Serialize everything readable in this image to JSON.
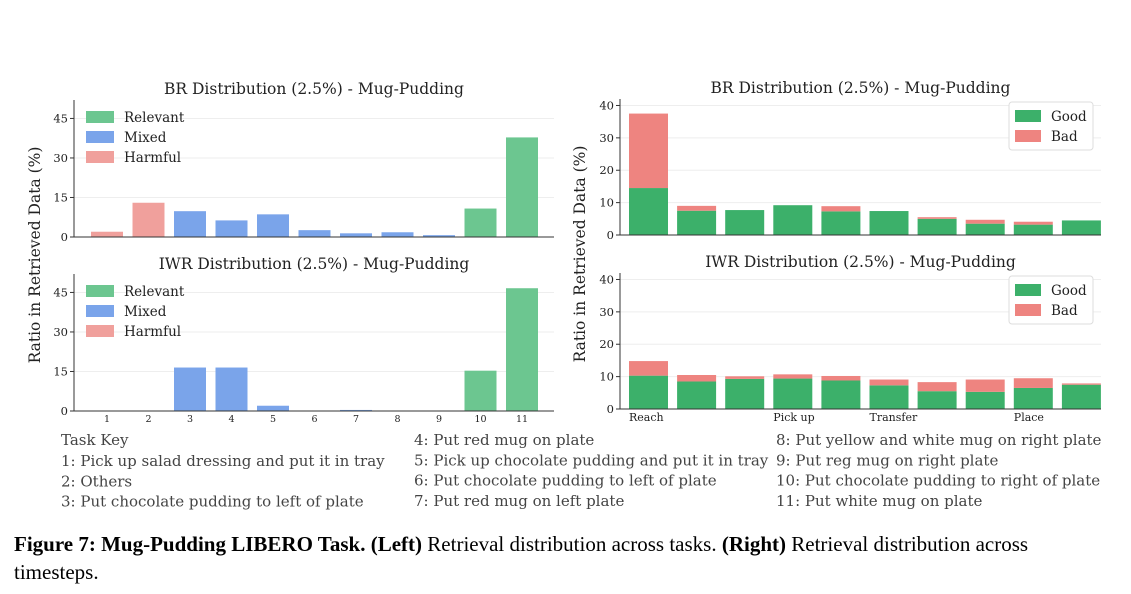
{
  "colors": {
    "relevant": "#6cc690",
    "mixed": "#7aa4ea",
    "harmful": "#f0a09c",
    "good": "#3cb06a",
    "bad": "#ee8480",
    "axis": "#333333",
    "grid": "#eeeeee",
    "key_text": "#444444"
  },
  "chart_data": [
    {
      "type": "bar",
      "title": "BR Distribution (2.5%) - Mug-Pudding",
      "ylabel": "Ratio in Retrieved Data (%)",
      "ylim": [
        0,
        52
      ],
      "yticks": [
        0,
        15,
        30,
        45
      ],
      "categories": [
        "1",
        "2",
        "3",
        "4",
        "5",
        "6",
        "7",
        "8",
        "9",
        "10",
        "11"
      ],
      "show_xticklabels": false,
      "values": [
        2.0,
        13.0,
        9.8,
        6.3,
        8.6,
        2.6,
        1.4,
        1.8,
        0.7,
        10.8,
        37.8
      ],
      "classes": [
        "harmful",
        "harmful",
        "mixed",
        "mixed",
        "mixed",
        "mixed",
        "mixed",
        "mixed",
        "mixed",
        "relevant",
        "relevant"
      ],
      "legend": [
        "Relevant",
        "Mixed",
        "Harmful"
      ],
      "legend_position": "top-left"
    },
    {
      "type": "bar",
      "title": "IWR Distribution (2.5%) - Mug-Pudding",
      "ylabel": "Ratio in Retrieved Data (%)",
      "ylim": [
        0,
        52
      ],
      "yticks": [
        0,
        15,
        30,
        45
      ],
      "categories": [
        "1",
        "2",
        "3",
        "4",
        "5",
        "6",
        "7",
        "8",
        "9",
        "10",
        "11"
      ],
      "show_xticklabels": true,
      "values": [
        0,
        0,
        16.5,
        16.5,
        2.0,
        0,
        0.4,
        0,
        0,
        15.3,
        46.6
      ],
      "classes": [
        "harmful",
        "harmful",
        "mixed",
        "mixed",
        "mixed",
        "mixed",
        "mixed",
        "mixed",
        "mixed",
        "relevant",
        "relevant"
      ],
      "legend": [
        "Relevant",
        "Mixed",
        "Harmful"
      ],
      "legend_position": "top-left"
    },
    {
      "type": "bar",
      "title": "BR Distribution (2.5%) - Mug-Pudding",
      "ylabel": "Ratio in Retrieved Data (%)",
      "ylim": [
        0,
        42
      ],
      "yticks": [
        0,
        10,
        20,
        30,
        40
      ],
      "stacked": true,
      "series": [
        {
          "name": "Good",
          "values": [
            14.5,
            7.5,
            7.7,
            9.2,
            7.3,
            7.4,
            5.0,
            3.5,
            3.2,
            4.5
          ]
        },
        {
          "name": "Bad",
          "values": [
            23.0,
            1.5,
            0,
            0,
            1.6,
            0,
            0.5,
            1.2,
            0.9,
            0
          ]
        }
      ],
      "xticklabels": [],
      "legend_position": "top-right"
    },
    {
      "type": "bar",
      "title": "IWR Distribution (2.5%) - Mug-Pudding",
      "ylabel": "Ratio in Retrieved Data (%)",
      "ylim": [
        0,
        42
      ],
      "yticks": [
        0,
        10,
        20,
        30,
        40
      ],
      "stacked": true,
      "series": [
        {
          "name": "Good",
          "values": [
            10.3,
            8.5,
            9.3,
            9.4,
            8.8,
            7.3,
            5.5,
            5.3,
            6.5,
            7.5
          ]
        },
        {
          "name": "Bad",
          "values": [
            4.5,
            2.0,
            0.8,
            1.3,
            1.4,
            1.8,
            2.8,
            3.8,
            3.0,
            0.4
          ]
        }
      ],
      "xticklabels": [
        {
          "label": "Reach",
          "bar": 0
        },
        {
          "label": "Pick up",
          "bar": 3
        },
        {
          "label": "Transfer",
          "bar": 5
        },
        {
          "label": "Place",
          "bar": 8
        }
      ],
      "legend_position": "top-right"
    }
  ],
  "task_key": {
    "heading": "Task Key",
    "col1": [
      "1: Pick up salad dressing and put it in tray",
      "2: Others",
      "3: Put chocolate pudding to left of plate"
    ],
    "col2": [
      "4: Put red mug on plate",
      "5: Pick up chocolate pudding and put it in tray",
      "6: Put chocolate pudding to left of plate",
      "7: Put red mug on left plate"
    ],
    "col3": [
      "8: Put yellow and white mug on right plate",
      "9: Put reg mug on right plate",
      "10: Put chocolate pudding to right of plate",
      "11: Put white mug on plate"
    ]
  },
  "caption": {
    "label": "Figure 7:",
    "bold_title": "Mug-Pudding LIBERO Task.",
    "left_tag": "(Left)",
    "left_text": "Retrieval distribution across tasks.",
    "right_tag": "(Right)",
    "right_text": "Retrieval distribution across timesteps."
  }
}
